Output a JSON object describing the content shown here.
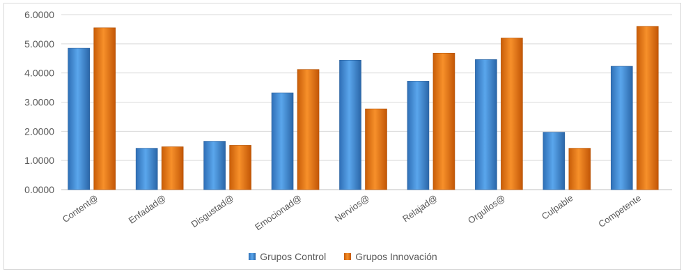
{
  "chart_data": {
    "type": "bar",
    "categories": [
      "Content@",
      "Enfadad@",
      "Disgustad@",
      "Emocionad@",
      "Nervios@",
      "Relajad@",
      "Orgullos@",
      "Culpable",
      "Competente"
    ],
    "series": [
      {
        "name": "Grupos Control",
        "color": "#4a90d9",
        "values": [
          4.85,
          1.42,
          1.66,
          3.32,
          4.44,
          3.72,
          4.46,
          1.97,
          4.23
        ]
      },
      {
        "name": "Grupos Innovación",
        "color": "#f07f1a",
        "values": [
          5.55,
          1.47,
          1.52,
          4.12,
          2.77,
          4.68,
          5.2,
          1.42,
          5.6
        ]
      }
    ],
    "ylim": [
      0,
      6
    ],
    "yticks": [
      "0.0000",
      "1.0000",
      "2.0000",
      "3.0000",
      "4.0000",
      "5.0000",
      "6.0000"
    ],
    "grid": true,
    "legend": "bottom"
  }
}
